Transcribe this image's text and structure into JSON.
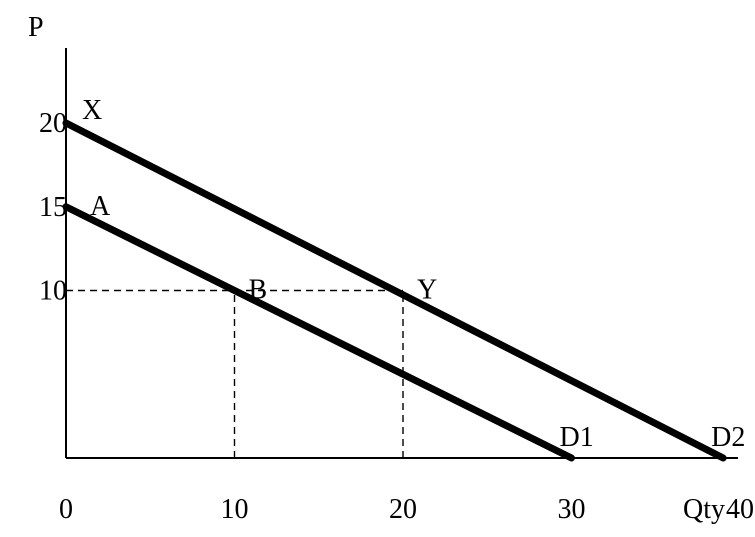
{
  "chart_data": {
    "type": "line",
    "xlabel": "Qty",
    "ylabel": "P",
    "xlim": [
      0,
      48
    ],
    "ylim": [
      0,
      22
    ],
    "x_ticks": [
      {
        "value": 0,
        "label": "0"
      },
      {
        "value": 10,
        "label": "10"
      },
      {
        "value": 20,
        "label": "20"
      },
      {
        "value": 30,
        "label": "30"
      },
      {
        "value": 40,
        "label": "40"
      }
    ],
    "y_ticks": [
      {
        "value": 10,
        "label": "10"
      },
      {
        "value": 15,
        "label": "15"
      },
      {
        "value": 20,
        "label": "20"
      }
    ],
    "series": [
      {
        "name": "D1",
        "points": [
          [
            0,
            15
          ],
          [
            30,
            0
          ]
        ]
      },
      {
        "name": "D2",
        "points": [
          [
            0,
            20
          ],
          [
            39,
            0
          ]
        ]
      }
    ],
    "reference_lines": [
      {
        "points": [
          [
            0,
            10
          ],
          [
            20,
            10
          ]
        ]
      },
      {
        "points": [
          [
            10,
            0
          ],
          [
            10,
            10
          ]
        ]
      },
      {
        "points": [
          [
            20,
            0
          ],
          [
            20,
            10
          ]
        ]
      }
    ],
    "annotations": [
      {
        "text": "X",
        "x": 0,
        "y": 20
      },
      {
        "text": "A",
        "x": 0,
        "y": 15
      },
      {
        "text": "B",
        "x": 10,
        "y": 10
      },
      {
        "text": "Y",
        "x": 20,
        "y": 10
      }
    ],
    "grid": false,
    "line_color": "#000000"
  }
}
